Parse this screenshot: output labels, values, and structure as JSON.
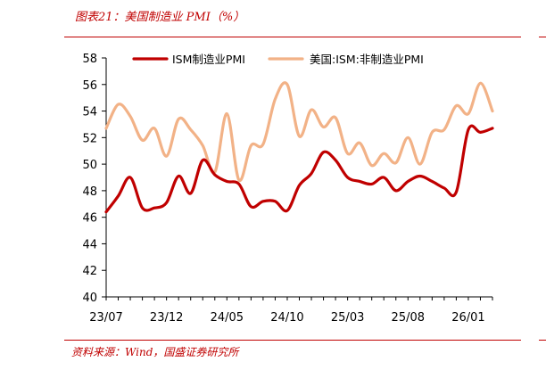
{
  "header": {
    "title": "图表21：美国制造业 PMI（%）"
  },
  "footer": {
    "source": "资料来源：Wind，国盛证券研究所"
  },
  "colors": {
    "accent": "#c00000",
    "series1": "#c00000",
    "series2": "#f2b287"
  },
  "chart_data": {
    "type": "line",
    "title": "",
    "xlabel": "",
    "ylabel": "",
    "ylim": [
      40,
      58
    ],
    "yticks": [
      40,
      42,
      44,
      46,
      48,
      50,
      52,
      54,
      56,
      58
    ],
    "xtick_labels": [
      "23/07",
      "23/12",
      "24/05",
      "24/10",
      "25/03",
      "25/08",
      "26/01"
    ],
    "legend_position": "top",
    "grid": false,
    "x": [
      "23/07",
      "23/08",
      "23/09",
      "23/10",
      "23/11",
      "23/12",
      "24/01",
      "24/02",
      "24/03",
      "24/04",
      "24/05",
      "24/06",
      "24/07",
      "24/08",
      "24/09",
      "24/10",
      "24/11",
      "24/12",
      "25/01",
      "25/02",
      "25/03",
      "25/04",
      "25/05",
      "25/06",
      "25/07",
      "25/08",
      "25/09",
      "25/10",
      "25/11",
      "25/12",
      "26/01",
      "26/02",
      "26/03"
    ],
    "series": [
      {
        "name": "ISM制造业PMI",
        "values": [
          46.4,
          47.6,
          49.0,
          46.7,
          46.7,
          47.1,
          49.1,
          47.8,
          50.3,
          49.2,
          48.7,
          48.5,
          46.8,
          47.2,
          47.2,
          46.5,
          48.4,
          49.3,
          50.9,
          50.3,
          49.0,
          48.7,
          48.5,
          49.0,
          48.0,
          48.7,
          49.1,
          48.7,
          48.2,
          47.9,
          52.6,
          52.4,
          52.7
        ]
      },
      {
        "name": "美国:ISM:非制造业PMI",
        "values": [
          52.7,
          54.5,
          53.6,
          51.8,
          52.7,
          50.6,
          53.4,
          52.6,
          51.4,
          49.4,
          53.8,
          48.8,
          51.4,
          51.5,
          54.9,
          56.0,
          52.1,
          54.1,
          52.8,
          53.5,
          50.8,
          51.6,
          49.9,
          50.8,
          50.1,
          52.0,
          50.0,
          52.4,
          52.6,
          54.4,
          53.8,
          56.1,
          54.0
        ]
      }
    ]
  }
}
